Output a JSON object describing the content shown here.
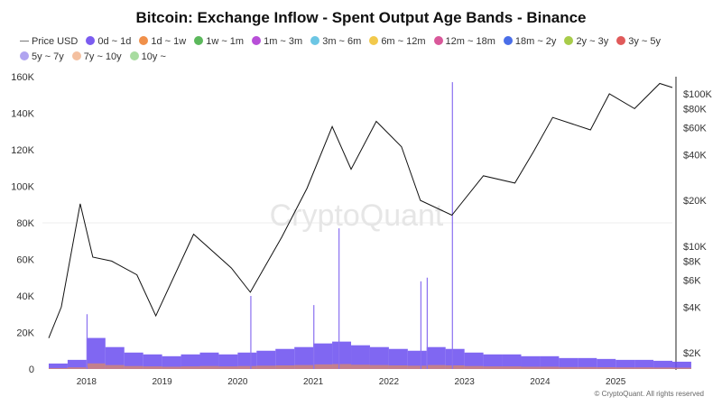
{
  "chart_data": {
    "type": "bar+line",
    "title": "Bitcoin: Exchange Inflow - Spent Output Age Bands - Binance",
    "legend": [
      {
        "name": "Price USD",
        "color": "#888888",
        "kind": "line"
      },
      {
        "name": "0d ~ 1d",
        "color": "#7b5cf0"
      },
      {
        "name": "1d ~ 1w",
        "color": "#f0904a"
      },
      {
        "name": "1w ~ 1m",
        "color": "#5cb85c"
      },
      {
        "name": "1m ~ 3m",
        "color": "#b84fd8"
      },
      {
        "name": "3m ~ 6m",
        "color": "#6cc6e4"
      },
      {
        "name": "6m ~ 12m",
        "color": "#f2c94c"
      },
      {
        "name": "12m ~ 18m",
        "color": "#d9589a"
      },
      {
        "name": "18m ~ 2y",
        "color": "#4a6ee8"
      },
      {
        "name": "2y ~ 3y",
        "color": "#a8cc4a"
      },
      {
        "name": "3y ~ 5y",
        "color": "#e05a5a"
      },
      {
        "name": "5y ~ 7y",
        "color": "#b0a4f0"
      },
      {
        "name": "7y ~ 10y",
        "color": "#f4c0a0"
      },
      {
        "name": "10y ~",
        "color": "#a8dca0"
      }
    ],
    "left_axis": {
      "ticks": [
        "0",
        "20K",
        "40K",
        "60K",
        "80K",
        "100K",
        "120K",
        "140K",
        "160K"
      ],
      "range": [
        0,
        160000
      ]
    },
    "right_axis": {
      "scale": "log",
      "ticks": [
        "$2K",
        "$4K",
        "$6K",
        "$8K",
        "$10K",
        "$20K",
        "$40K",
        "$60K",
        "$80K",
        "$100K"
      ],
      "tick_values": [
        2000,
        4000,
        6000,
        8000,
        10000,
        20000,
        40000,
        60000,
        80000,
        100000
      ]
    },
    "x_ticks": [
      "2018",
      "2019",
      "2020",
      "2021",
      "2022",
      "2023",
      "2024",
      "2025"
    ],
    "x_range": [
      "2017-06",
      "2025-10"
    ],
    "inflow_quarterly": {
      "start": "2017-07",
      "values": [
        3000,
        5000,
        17000,
        12000,
        9000,
        8000,
        7000,
        8000,
        9000,
        8000,
        9000,
        10000,
        11000,
        12000,
        14000,
        15000,
        13000,
        12000,
        11000,
        10000,
        12000,
        11000,
        9000,
        8000,
        8000,
        7000,
        7000,
        6000,
        6000,
        5500,
        5000,
        5000,
        4500,
        4000
      ]
    },
    "inflow_spikes": [
      [
        "2018-01",
        30000
      ],
      [
        "2020-03",
        40000
      ],
      [
        "2021-05",
        77000
      ],
      [
        "2022-06",
        48000
      ],
      [
        "2022-07",
        50000
      ],
      [
        "2022-11",
        157000
      ],
      [
        "2021-01",
        35000
      ]
    ],
    "price": [
      [
        "2017-07",
        2500
      ],
      [
        "2017-09",
        4000
      ],
      [
        "2017-12",
        19000
      ],
      [
        "2018-02",
        8500
      ],
      [
        "2018-05",
        8000
      ],
      [
        "2018-09",
        6500
      ],
      [
        "2018-12",
        3500
      ],
      [
        "2019-06",
        12000
      ],
      [
        "2019-12",
        7200
      ],
      [
        "2020-03",
        5000
      ],
      [
        "2020-08",
        11500
      ],
      [
        "2020-12",
        24000
      ],
      [
        "2021-04",
        61000
      ],
      [
        "2021-07",
        32000
      ],
      [
        "2021-11",
        66000
      ],
      [
        "2022-03",
        45000
      ],
      [
        "2022-06",
        20000
      ],
      [
        "2022-11",
        16000
      ],
      [
        "2023-04",
        29000
      ],
      [
        "2023-09",
        26000
      ],
      [
        "2023-12",
        42000
      ],
      [
        "2024-03",
        70000
      ],
      [
        "2024-09",
        58000
      ],
      [
        "2024-12",
        100000
      ],
      [
        "2025-04",
        80000
      ],
      [
        "2025-08",
        117000
      ],
      [
        "2025-10",
        110000
      ]
    ]
  },
  "watermark": "CryptoQuant",
  "copyright": "© CryptoQuant. All rights reserved"
}
